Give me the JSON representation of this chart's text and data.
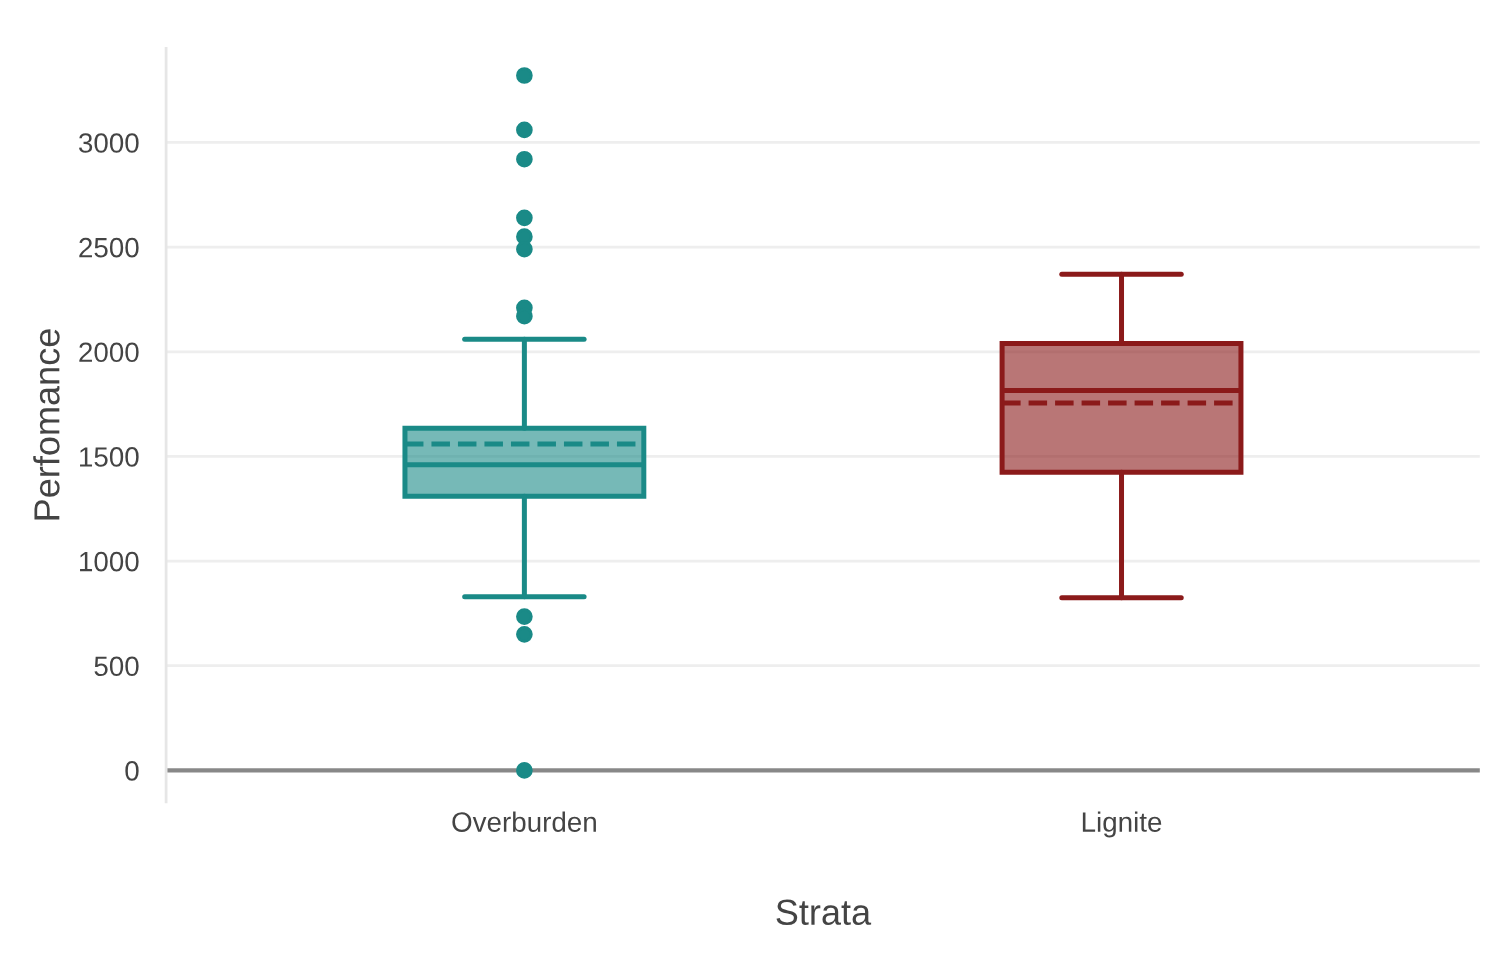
{
  "chart_data": {
    "type": "box",
    "xlabel": "Strata",
    "ylabel": "Perfomance",
    "categories": [
      "Overburden",
      "Lignite"
    ],
    "series": [
      {
        "color": "#1a8a87",
        "boxes": [
          {
            "low": 830,
            "q1": 1310,
            "median": 1460,
            "q3": 1635,
            "high": 2060,
            "mean": 1560,
            "outliers": [
              3320,
              3060,
              2920,
              2640,
              2550,
              2490,
              2210,
              2170,
              735,
              650,
              0
            ]
          },
          null
        ]
      },
      {
        "color": "#8b1a1a",
        "boxes": [
          null,
          {
            "low": 825,
            "q1": 1425,
            "median": 1815,
            "q3": 2040,
            "high": 2370,
            "mean": 1755
          }
        ]
      }
    ],
    "ylim": [
      -150,
      3450
    ],
    "yticks": [
      0,
      500,
      1000,
      1500,
      2000,
      2500,
      3000
    ],
    "grid": "y",
    "line_style": "dashed"
  }
}
